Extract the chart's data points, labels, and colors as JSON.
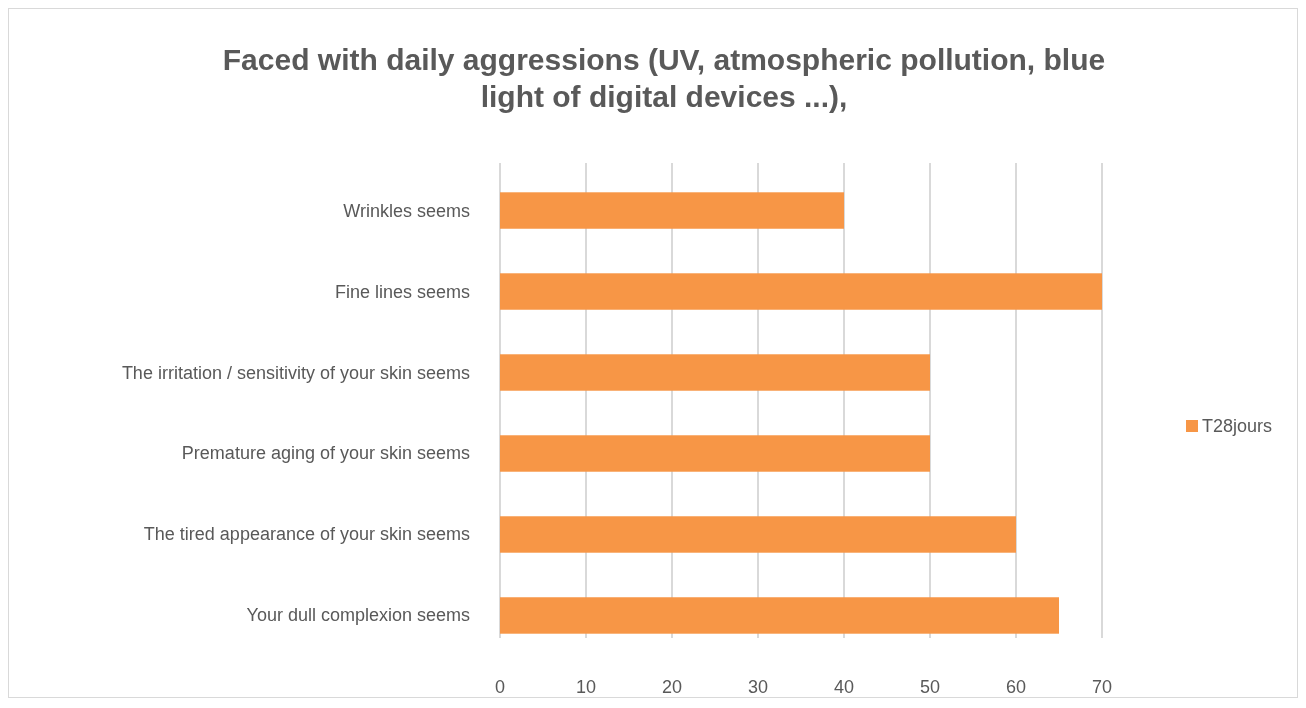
{
  "chart_data": {
    "type": "bar",
    "orientation": "horizontal",
    "title": "Faced with daily aggressions (UV, atmospheric pollution, blue light of digital devices ...),",
    "categories": [
      "Wrinkles seems",
      "Fine lines seems",
      "The irritation / sensitivity of your skin seems",
      "Premature aging of your skin seems",
      "The tired appearance of your skin seems",
      "Your dull complexion seems"
    ],
    "series": [
      {
        "name": "T28jours",
        "color": "#f79646",
        "values": [
          40,
          70,
          50,
          50,
          60,
          65
        ]
      }
    ],
    "xlim": [
      0,
      70
    ],
    "xticks": [
      0,
      10,
      20,
      30,
      40,
      50,
      60,
      70
    ],
    "grid": "x",
    "legend": "right"
  }
}
